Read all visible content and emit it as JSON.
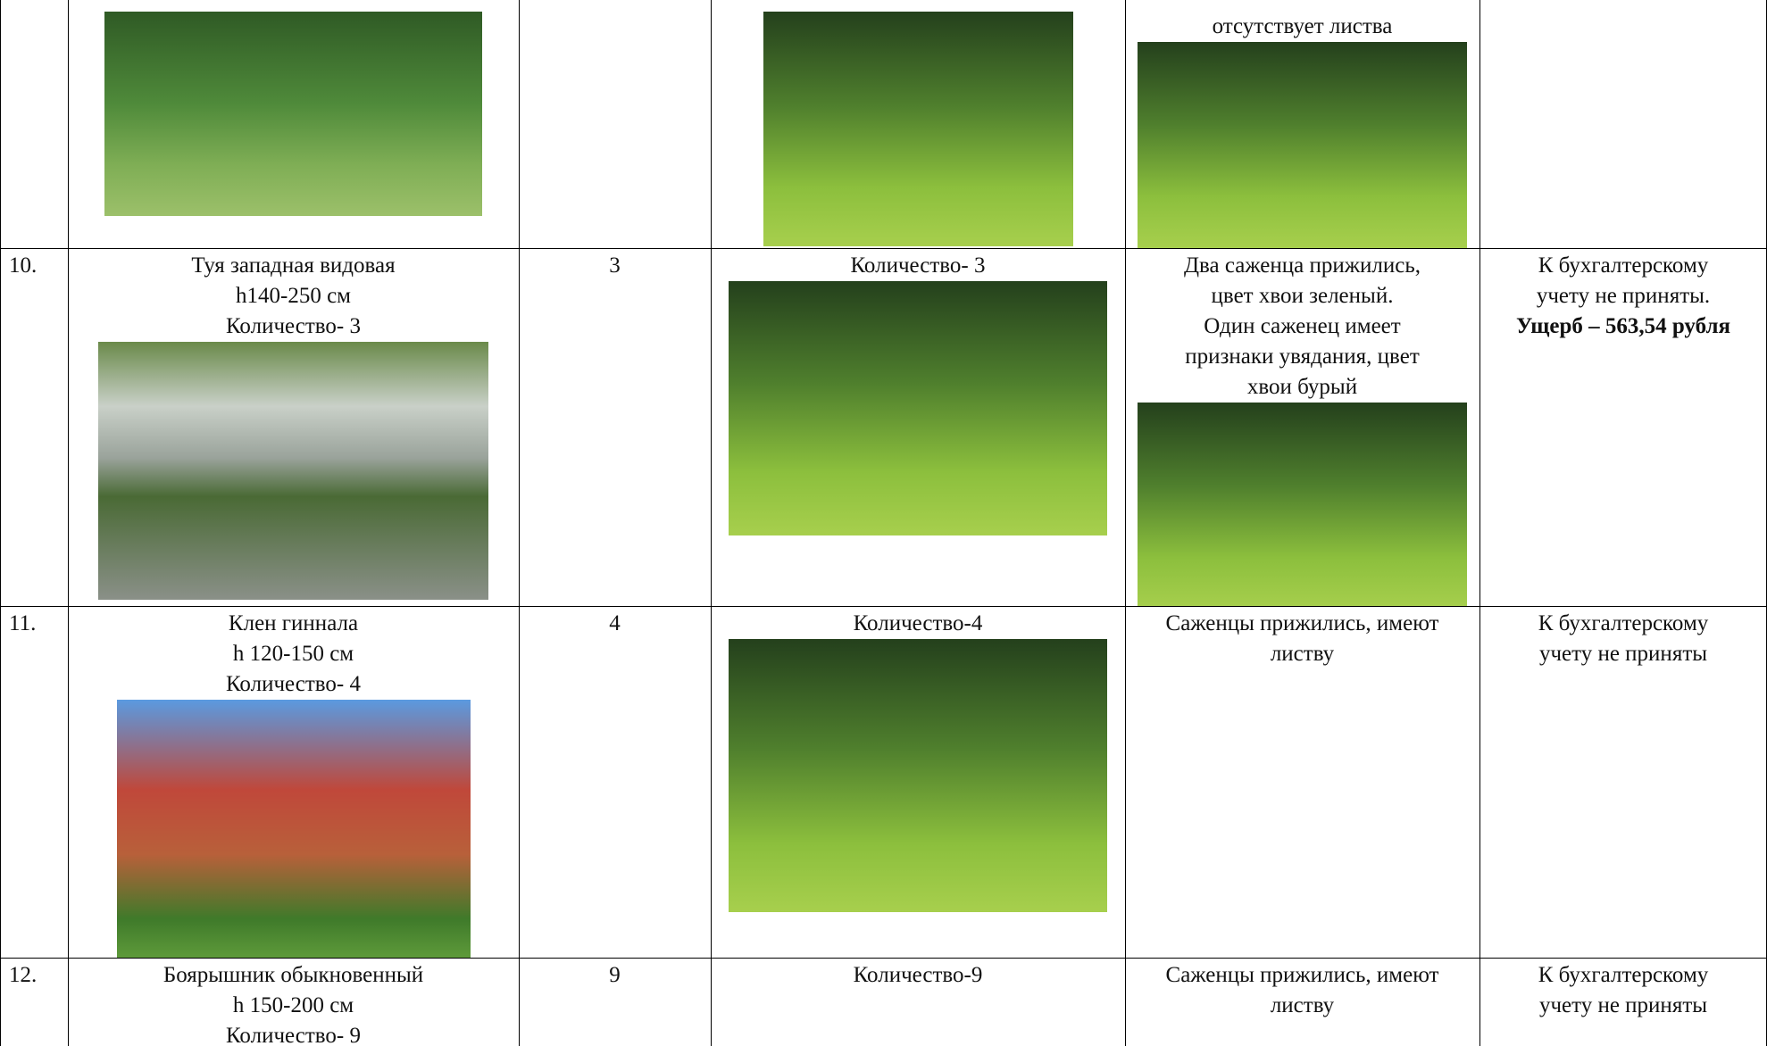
{
  "table": {
    "rows": [
      {
        "condition": [
          "отсутствует листва"
        ]
      },
      {
        "number": "10.",
        "plant": [
          "Туя западная видовая",
          "h140-250 см",
          "Количество- 3"
        ],
        "planted": "3",
        "photo_caption": "Количество- 3",
        "condition": [
          "Два саженца прижились,",
          "цвет хвои зеленый.",
          "Один саженец имеет",
          "признаки увядания, цвет",
          "хвои бурый"
        ],
        "accounting": [
          "К бухгалтерскому",
          "учету не приняты."
        ],
        "damage": "Ущерб – 563,54 рубля"
      },
      {
        "number": "11.",
        "plant": [
          "Клен гиннала",
          "h 120-150 см",
          "Количество- 4"
        ],
        "planted": "4",
        "photo_caption": "Количество-4",
        "condition": [
          "Саженцы прижились, имеют",
          "листву"
        ],
        "accounting": [
          "К бухгалтерскому",
          "учету не приняты"
        ]
      },
      {
        "number": "12.",
        "plant": [
          "Боярышник обыкновенный",
          "h 150-200 см",
          "Количество- 9"
        ],
        "planted": "9",
        "photo_caption": "Количество-9",
        "condition": [
          "Саженцы прижились, имеют",
          "листву"
        ],
        "accounting": [
          "К бухгалтерскому",
          "учету не приняты"
        ]
      }
    ]
  }
}
